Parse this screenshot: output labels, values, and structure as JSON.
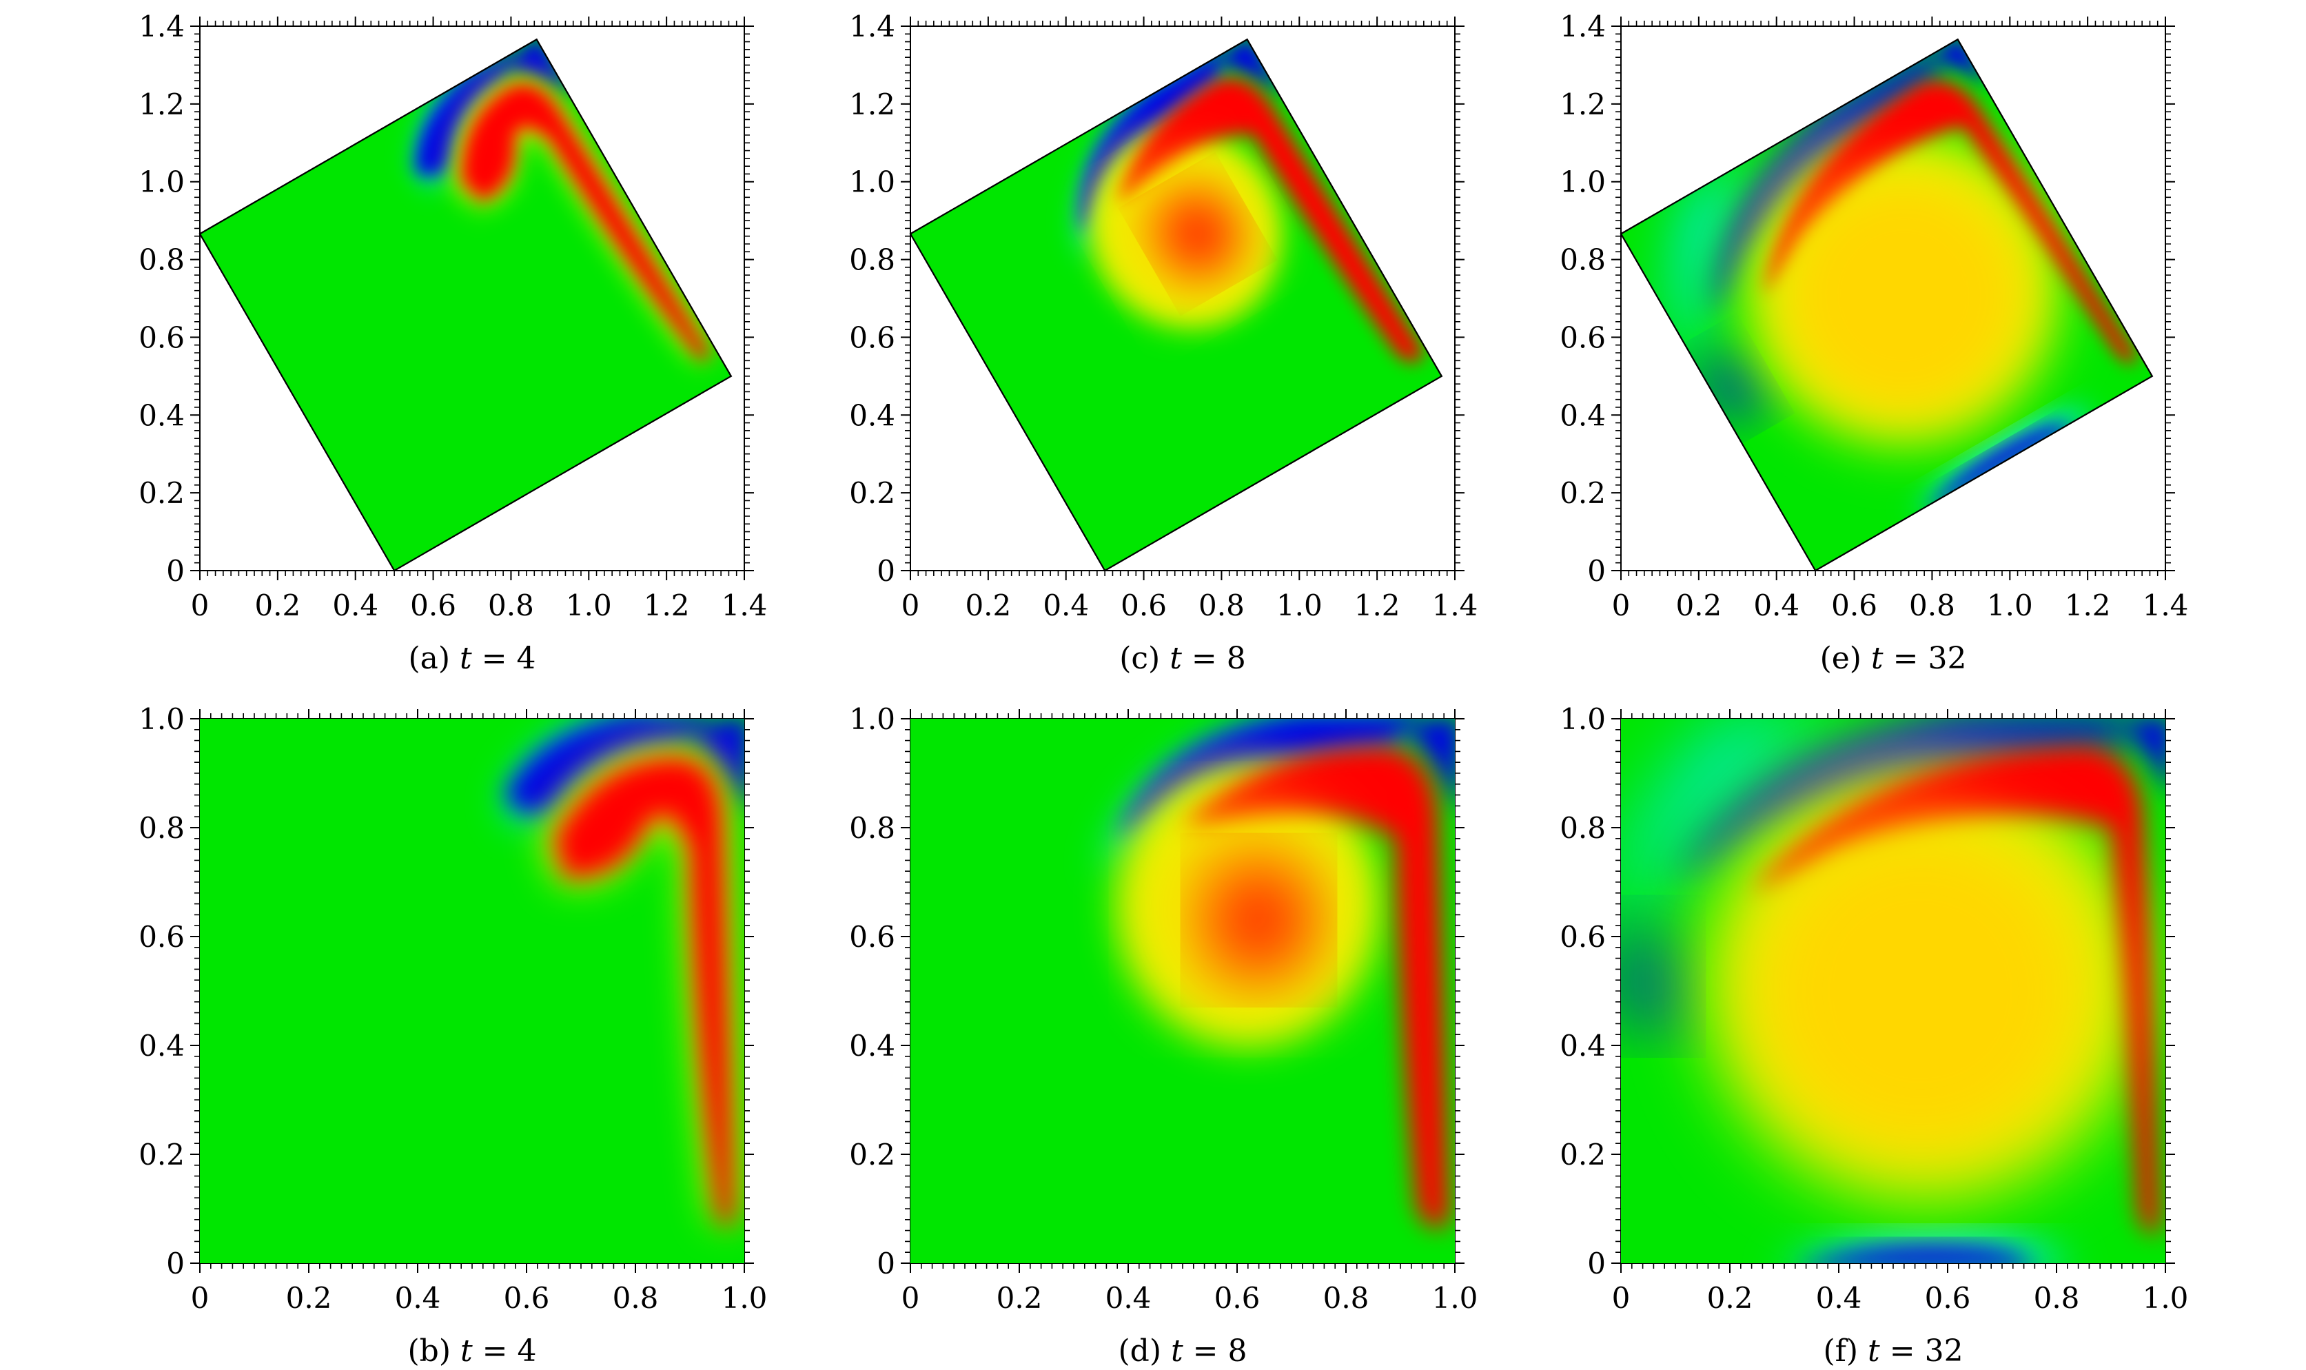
{
  "figure": {
    "panels": [
      {
        "id": "a",
        "caption_prefix": "(a)",
        "caption_var": "t",
        "caption_eq": " = 4"
      },
      {
        "id": "c",
        "caption_prefix": "(c)",
        "caption_var": "t",
        "caption_eq": " = 8"
      },
      {
        "id": "e",
        "caption_prefix": "(e)",
        "caption_var": "t",
        "caption_eq": " = 32"
      },
      {
        "id": "b",
        "caption_prefix": "(b)",
        "caption_var": "t",
        "caption_eq": " = 4"
      },
      {
        "id": "d",
        "caption_prefix": "(d)",
        "caption_var": "t",
        "caption_eq": " = 8"
      },
      {
        "id": "f",
        "caption_prefix": "(f)",
        "caption_var": "t",
        "caption_eq": " = 32"
      }
    ]
  },
  "colormap": {
    "stops": [
      "#0000e6",
      "#00e8ff",
      "#00e600",
      "#e8f500",
      "#ffd700",
      "#ff0000"
    ],
    "background": "#00e600"
  },
  "chart_data": [
    {
      "panel": "a",
      "type": "heatmap",
      "caption": "(a) t = 4",
      "domain": "rotated-square",
      "xlim": [
        0,
        1.4
      ],
      "ylim": [
        0,
        1.4
      ],
      "xticks": [
        "0",
        "0.2",
        "0.4",
        "0.6",
        "0.8",
        "1.0",
        "1.2",
        "1.4"
      ],
      "yticks": [
        "0",
        "0.2",
        "0.4",
        "0.6",
        "0.8",
        "1.0",
        "1.2",
        "1.4"
      ],
      "corners": [
        [
          0,
          0.866
        ],
        [
          0.5,
          0
        ],
        [
          1.366,
          0.5
        ],
        [
          0.866,
          1.366
        ]
      ],
      "t": 4,
      "stage": "early"
    },
    {
      "panel": "c",
      "type": "heatmap",
      "caption": "(c) t = 8",
      "domain": "rotated-square",
      "xlim": [
        0,
        1.4
      ],
      "ylim": [
        0,
        1.4
      ],
      "xticks": [
        "0",
        "0.2",
        "0.4",
        "0.6",
        "0.8",
        "1.0",
        "1.2",
        "1.4"
      ],
      "yticks": [
        "0",
        "0.2",
        "0.4",
        "0.6",
        "0.8",
        "1.0",
        "1.2",
        "1.4"
      ],
      "corners": [
        [
          0,
          0.866
        ],
        [
          0.5,
          0
        ],
        [
          1.366,
          0.5
        ],
        [
          0.866,
          1.366
        ]
      ],
      "t": 8,
      "stage": "mid"
    },
    {
      "panel": "e",
      "type": "heatmap",
      "caption": "(e) t = 32",
      "domain": "rotated-square",
      "xlim": [
        0,
        1.4
      ],
      "ylim": [
        0,
        1.4
      ],
      "xticks": [
        "0",
        "0.2",
        "0.4",
        "0.6",
        "0.8",
        "1.0",
        "1.2",
        "1.4"
      ],
      "yticks": [
        "0",
        "0.2",
        "0.4",
        "0.6",
        "0.8",
        "1.0",
        "1.2",
        "1.4"
      ],
      "corners": [
        [
          0,
          0.866
        ],
        [
          0.5,
          0
        ],
        [
          1.366,
          0.5
        ],
        [
          0.866,
          1.366
        ]
      ],
      "t": 32,
      "stage": "late"
    },
    {
      "panel": "b",
      "type": "heatmap",
      "caption": "(b) t = 4",
      "domain": "unit-square",
      "xlim": [
        0,
        1.0
      ],
      "ylim": [
        0,
        1.0
      ],
      "xticks": [
        "0",
        "0.2",
        "0.4",
        "0.6",
        "0.8",
        "1.0"
      ],
      "yticks": [
        "0",
        "0.2",
        "0.4",
        "0.6",
        "0.8",
        "1.0"
      ],
      "t": 4,
      "stage": "early"
    },
    {
      "panel": "d",
      "type": "heatmap",
      "caption": "(d) t = 8",
      "domain": "unit-square",
      "xlim": [
        0,
        1.0
      ],
      "ylim": [
        0,
        1.0
      ],
      "xticks": [
        "0",
        "0.2",
        "0.4",
        "0.6",
        "0.8",
        "1.0"
      ],
      "yticks": [
        "0",
        "0.2",
        "0.4",
        "0.6",
        "0.8",
        "1.0"
      ],
      "t": 8,
      "stage": "mid"
    },
    {
      "panel": "f",
      "type": "heatmap",
      "caption": "(f) t = 32",
      "domain": "unit-square",
      "xlim": [
        0,
        1.0
      ],
      "ylim": [
        0,
        1.0
      ],
      "xticks": [
        "0",
        "0.2",
        "0.4",
        "0.6",
        "0.8",
        "1.0"
      ],
      "yticks": [
        "0",
        "0.2",
        "0.4",
        "0.6",
        "0.8",
        "1.0"
      ],
      "t": 32,
      "stage": "late"
    }
  ]
}
